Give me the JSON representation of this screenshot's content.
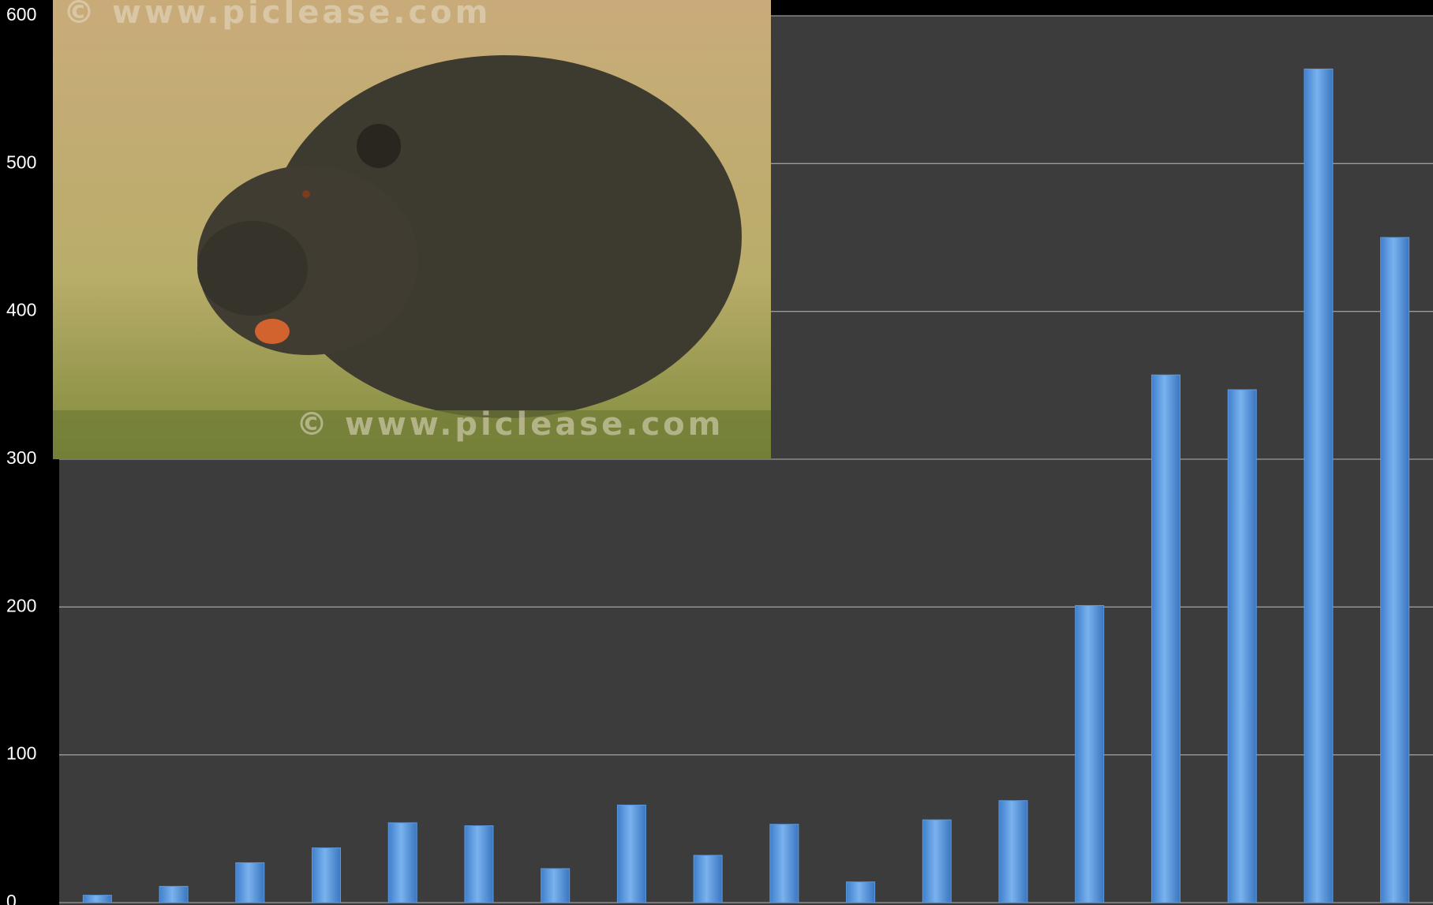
{
  "chart_data": {
    "type": "bar",
    "values": [
      5,
      11,
      27,
      37,
      54,
      52,
      23,
      66,
      32,
      53,
      14,
      56,
      69,
      201,
      357,
      347,
      564,
      450
    ],
    "color": "#5b9be2",
    "ylim": [
      0,
      600
    ],
    "yticks": [
      0,
      100,
      200,
      300,
      400,
      500,
      600
    ],
    "grid": true,
    "watermark": "© www.piclease.com"
  }
}
